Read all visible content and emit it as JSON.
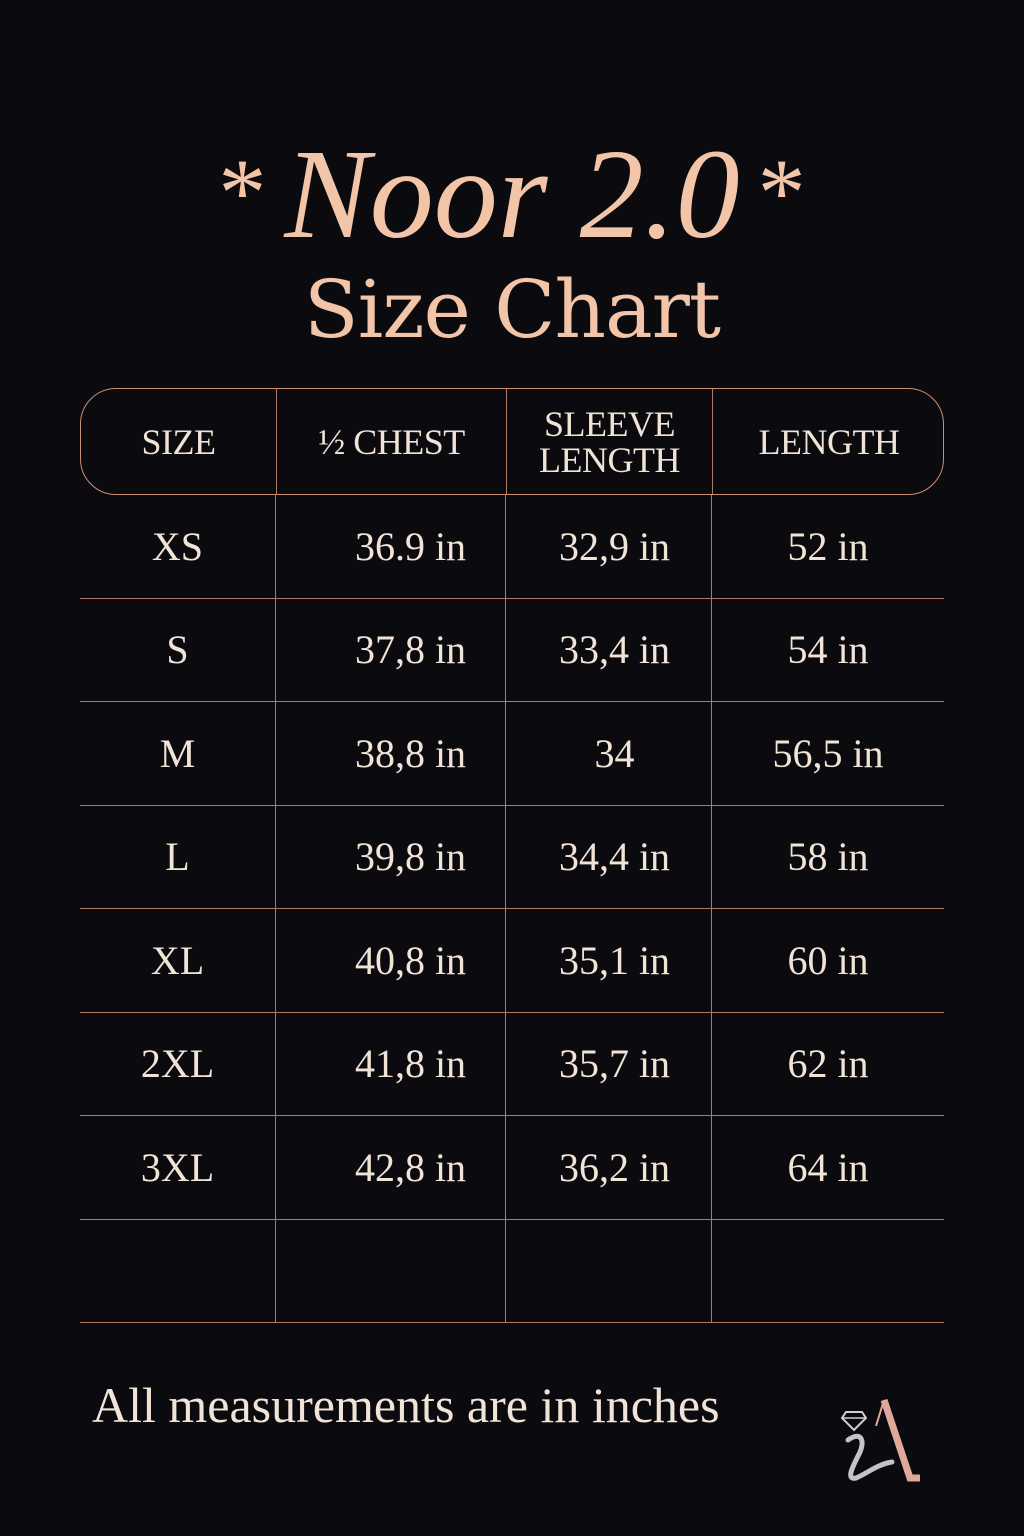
{
  "title": {
    "prefix_star": "*",
    "name": "Noor 2.0",
    "suffix_star": "*"
  },
  "subtitle": "Size Chart",
  "table": {
    "headers": [
      "SIZE",
      "½ CHEST",
      "SLEEVE LENGTH",
      "LENGTH"
    ],
    "rows": [
      [
        "XS",
        "36.9 in",
        "32,9 in",
        "52 in"
      ],
      [
        "S",
        "37,8 in",
        "33,4 in",
        "54 in"
      ],
      [
        "M",
        "38,8 in",
        "34",
        "56,5 in"
      ],
      [
        "L",
        "39,8 in",
        "34,4 in",
        "58 in"
      ],
      [
        "XL",
        "40,8 in",
        "35,1 in",
        "60 in"
      ],
      [
        "2XL",
        "41,8 in",
        "35,7 in",
        "62 in"
      ],
      [
        "3XL",
        "42,8 in",
        "36,2 in",
        "64 in"
      ],
      [
        "",
        "",
        "",
        ""
      ]
    ]
  },
  "footer": "All measurements are in inches",
  "logo": {
    "letters": "iA",
    "icon": "diamond-icon"
  },
  "colors": {
    "background": "#0b0a0f",
    "title": "#f2c4a8",
    "text": "#f1e4d6",
    "lines": "#b07a63",
    "logo_accent": "#e0a89a"
  }
}
